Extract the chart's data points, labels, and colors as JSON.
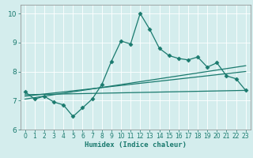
{
  "xlabel": "Humidex (Indice chaleur)",
  "bg_color": "#d4eded",
  "line_color": "#1a7a6e",
  "grid_color": "#ffffff",
  "xlim": [
    -0.5,
    23.5
  ],
  "ylim": [
    6.0,
    10.3
  ],
  "yticks": [
    6,
    7,
    8,
    9,
    10
  ],
  "xticks": [
    0,
    1,
    2,
    3,
    4,
    5,
    6,
    7,
    8,
    9,
    10,
    11,
    12,
    13,
    14,
    15,
    16,
    17,
    18,
    19,
    20,
    21,
    22,
    23
  ],
  "main_x": [
    0,
    1,
    2,
    3,
    4,
    5,
    6,
    7,
    8,
    9,
    10,
    11,
    12,
    13,
    14,
    15,
    16,
    17,
    18,
    19,
    20,
    21,
    22,
    23
  ],
  "main_y": [
    7.3,
    7.05,
    7.15,
    6.95,
    6.85,
    6.45,
    6.75,
    7.05,
    7.55,
    8.35,
    9.05,
    8.95,
    10.0,
    9.45,
    8.8,
    8.55,
    8.45,
    8.4,
    8.5,
    8.15,
    8.3,
    7.85,
    7.75,
    7.35
  ],
  "trend1_x": [
    0,
    23
  ],
  "trend1_y": [
    7.2,
    7.35
  ],
  "trend2_x": [
    0,
    23
  ],
  "trend2_y": [
    7.15,
    8.0
  ],
  "trend3_x": [
    0,
    23
  ],
  "trend3_y": [
    7.05,
    8.2
  ]
}
